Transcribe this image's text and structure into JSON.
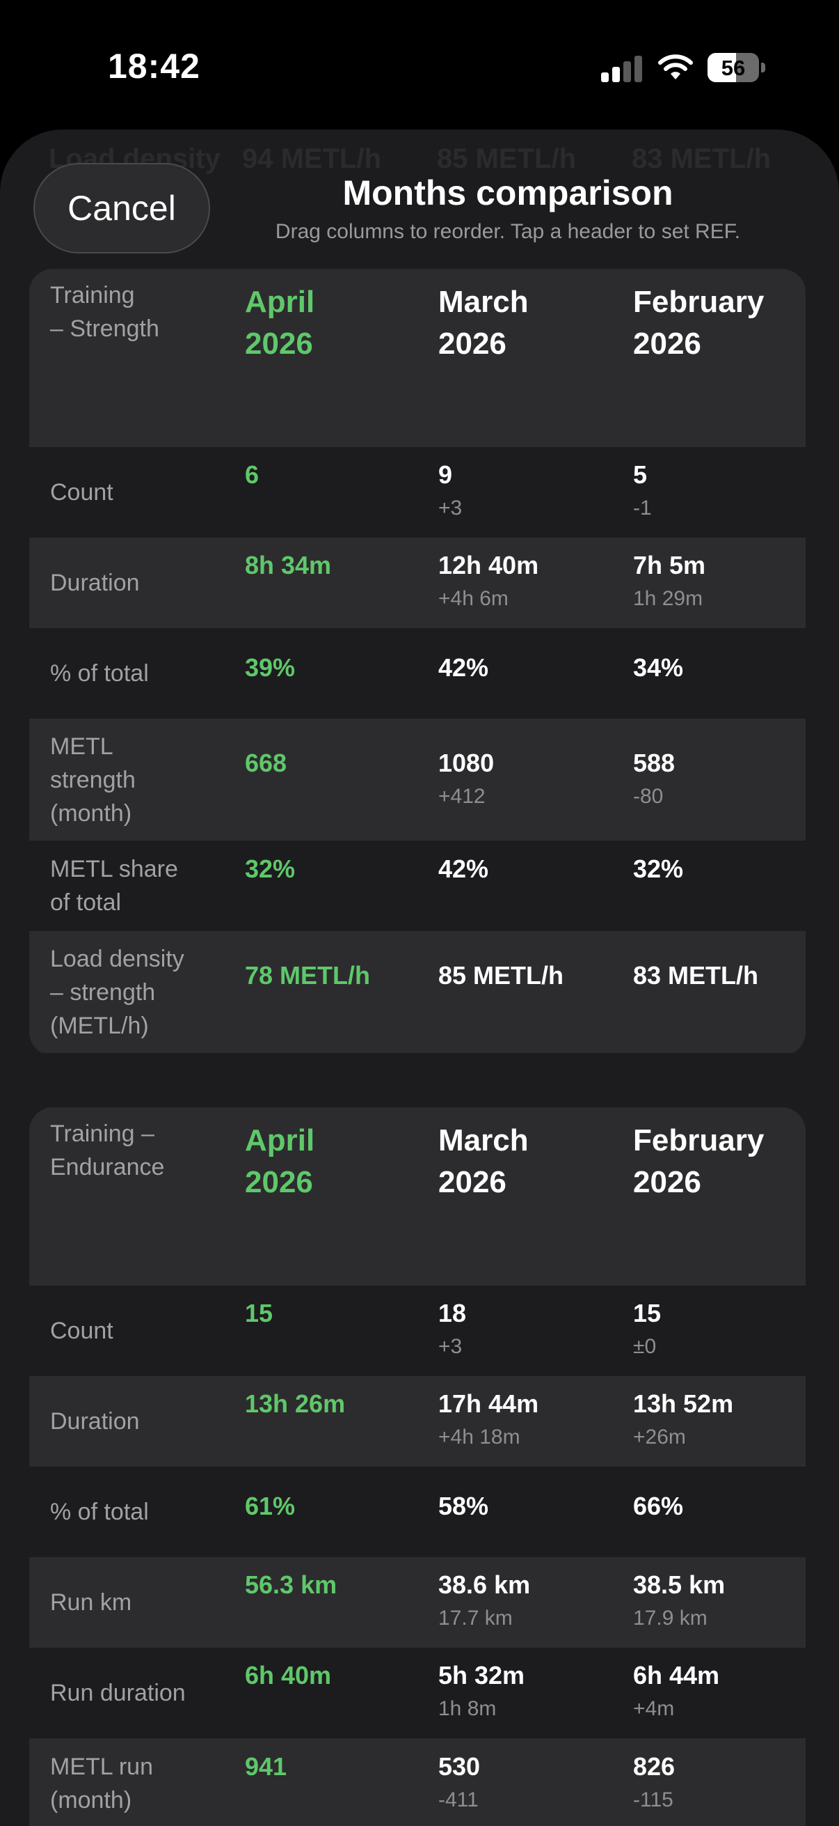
{
  "status": {
    "time": "18:42",
    "battery": "56",
    "battery_level": 0.56
  },
  "ghost_row": [
    "Load density",
    "94 METL/h",
    "85 METL/h",
    "83 METL/h"
  ],
  "header": {
    "cancel_label": "Cancel",
    "title": "Months comparison",
    "subtitle": "Drag columns to reorder. Tap a header to set REF."
  },
  "sections": [
    {
      "title": "Training\n– Strength",
      "columns": [
        "April\n2026",
        "March\n2026",
        "February\n2026"
      ],
      "rows": [
        {
          "label": "Count",
          "values": [
            "6",
            "9",
            "5"
          ],
          "deltas": [
            "",
            "+3",
            "-1"
          ]
        },
        {
          "label": "Duration",
          "values": [
            "8h 34m",
            "12h 40m",
            "7h 5m"
          ],
          "deltas": [
            "",
            "+4h 6m",
            "1h 29m"
          ]
        },
        {
          "label": "% of total",
          "values": [
            "39%",
            "42%",
            "34%"
          ],
          "deltas": [
            "",
            "",
            ""
          ]
        },
        {
          "label": "METL\nstrength\n(month)",
          "values": [
            "668",
            "1080",
            "588"
          ],
          "deltas": [
            "",
            "+412",
            "-80"
          ]
        },
        {
          "label": "METL share\nof total",
          "values": [
            "32%",
            "42%",
            "32%"
          ],
          "deltas": [
            "",
            "",
            ""
          ]
        },
        {
          "label": "Load density\n– strength\n(METL/h)",
          "values": [
            "78 METL/h",
            "85 METL/h",
            "83 METL/h"
          ],
          "deltas": [
            "",
            "",
            ""
          ]
        }
      ]
    },
    {
      "title": "Training –\nEndurance",
      "columns": [
        "April\n2026",
        "March\n2026",
        "February\n2026"
      ],
      "rows": [
        {
          "label": "Count",
          "values": [
            "15",
            "18",
            "15"
          ],
          "deltas": [
            "",
            "+3",
            "±0"
          ]
        },
        {
          "label": "Duration",
          "values": [
            "13h 26m",
            "17h 44m",
            "13h 52m"
          ],
          "deltas": [
            "",
            "+4h 18m",
            "+26m"
          ]
        },
        {
          "label": "% of total",
          "values": [
            "61%",
            "58%",
            "66%"
          ],
          "deltas": [
            "",
            "",
            ""
          ]
        },
        {
          "label": "Run km",
          "values": [
            "56.3 km",
            "38.6 km",
            "38.5 km"
          ],
          "deltas": [
            "",
            "17.7 km",
            "17.9 km"
          ]
        },
        {
          "label": "Run duration",
          "values": [
            "6h 40m",
            "5h 32m",
            "6h 44m"
          ],
          "deltas": [
            "",
            "1h 8m",
            "+4m"
          ]
        },
        {
          "label": "METL run\n(month)",
          "values": [
            "941",
            "530",
            "826"
          ],
          "deltas": [
            "",
            "-411",
            "-115"
          ]
        }
      ]
    }
  ]
}
